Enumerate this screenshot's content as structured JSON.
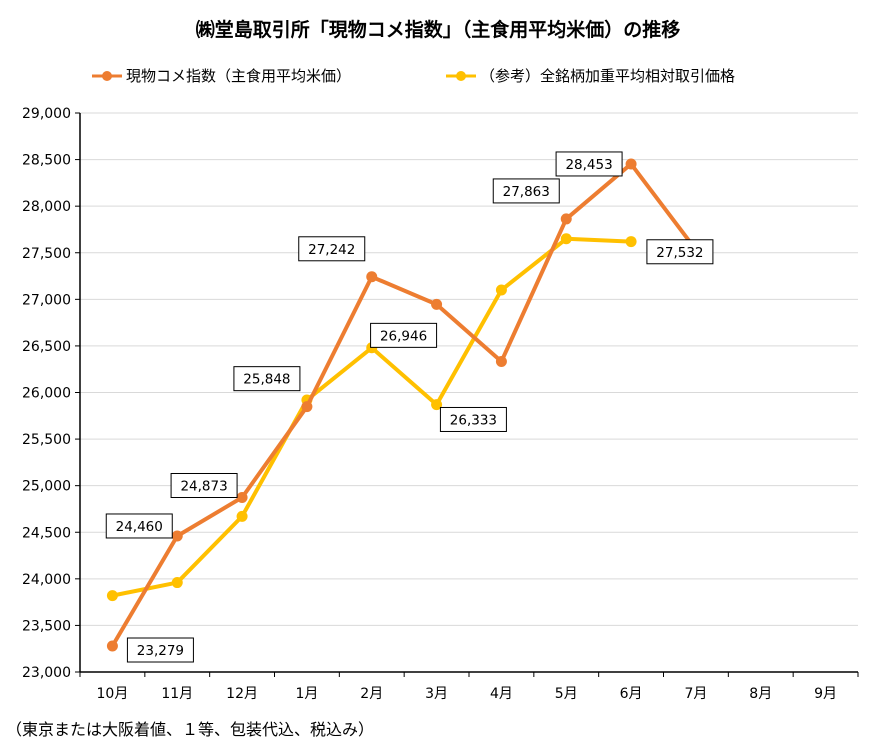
{
  "chart_data": {
    "type": "line",
    "title": "㈱堂島取引所「現物コメ指数」（主食用平均米価）の推移",
    "categories": [
      "10月",
      "11月",
      "12月",
      "1月",
      "2月",
      "3月",
      "4月",
      "5月",
      "6月",
      "7月",
      "8月",
      "9月"
    ],
    "ylim": [
      23000,
      29000
    ],
    "yticks": [
      "23,000",
      "23,500",
      "24,000",
      "24,500",
      "25,000",
      "25,500",
      "26,000",
      "26,500",
      "27,000",
      "27,500",
      "28,000",
      "28,500",
      "29,000"
    ],
    "ytick_values": [
      23000,
      23500,
      24000,
      24500,
      25000,
      25500,
      26000,
      26500,
      27000,
      27500,
      28000,
      28500,
      29000
    ],
    "grid": true,
    "legend_position": "top",
    "series": [
      {
        "name": "現物コメ指数（主食用平均米価）",
        "color": "#ED7D31",
        "values": [
          23279,
          24460,
          24873,
          25848,
          27242,
          26946,
          26333,
          27863,
          28453,
          27532,
          null,
          null
        ],
        "data_labels": [
          "23,279",
          "24,460",
          "24,873",
          "25,848",
          "27,242",
          "26,946",
          "26,333",
          "27,863",
          "28,453",
          "27,532",
          "",
          ""
        ]
      },
      {
        "name": "（参考）全銘柄加重平均相対取引価格",
        "color": "#FFC000",
        "values": [
          23820,
          23960,
          24670,
          25920,
          26480,
          25870,
          27100,
          27650,
          27620,
          null,
          null,
          null
        ]
      }
    ]
  },
  "footnote": "（東京または大阪着値、１等、包装代込、税込み）"
}
